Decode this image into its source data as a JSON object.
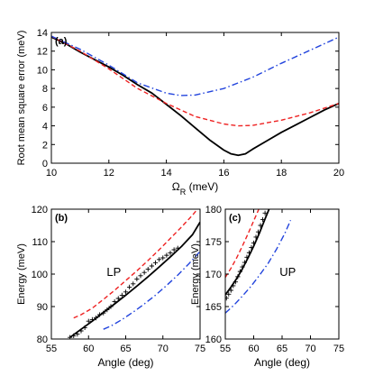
{
  "chart_data": [
    {
      "type": "line",
      "panel_label": "(a)",
      "title": "",
      "xlabel": "Ω",
      "xlabel_sub": "R",
      "xlabel_unit": " (meV)",
      "ylabel": "Root mean square error (meV)",
      "xlim": [
        10,
        20
      ],
      "ylim": [
        0,
        14
      ],
      "xticks": [
        10,
        12,
        14,
        16,
        18,
        20
      ],
      "yticks": [
        0,
        2,
        4,
        6,
        8,
        10,
        12,
        14
      ],
      "grid": false,
      "series": [
        {
          "style": "solid",
          "color": "#000000",
          "x": [
            10,
            10.5,
            11,
            11.5,
            12,
            12.5,
            13,
            13.5,
            14,
            14.5,
            15,
            15.5,
            16,
            16.25,
            16.5,
            16.75,
            17,
            17.5,
            18,
            18.5,
            19,
            19.5,
            20
          ],
          "y": [
            13.5,
            12.8,
            11.9,
            11.1,
            10.3,
            9.4,
            8.4,
            7.5,
            6.3,
            5.1,
            3.8,
            2.5,
            1.4,
            1.0,
            0.85,
            1.0,
            1.5,
            2.4,
            3.3,
            4.1,
            4.9,
            5.7,
            6.4
          ]
        },
        {
          "style": "dashed",
          "color": "#ee2222",
          "x": [
            10,
            11,
            12,
            13,
            14,
            15,
            16,
            16.5,
            17,
            18,
            19,
            20
          ],
          "y": [
            13.6,
            12.0,
            10.1,
            8.0,
            6.4,
            5.0,
            4.2,
            4.0,
            4.05,
            4.6,
            5.4,
            6.4
          ]
        },
        {
          "style": "dashdot",
          "color": "#2244dd",
          "x": [
            10,
            11,
            12,
            13,
            14,
            14.5,
            15,
            16,
            17,
            18,
            19,
            20
          ],
          "y": [
            13.6,
            12.2,
            10.5,
            8.6,
            7.5,
            7.25,
            7.3,
            8.0,
            9.2,
            10.7,
            12.1,
            13.5
          ]
        }
      ]
    },
    {
      "type": "line",
      "panel_label": "(b)",
      "annotation": "LP",
      "xlabel": "Angle (deg)",
      "ylabel": "Energy (meV)",
      "xlim": [
        55,
        75
      ],
      "ylim": [
        80,
        120
      ],
      "xticks": [
        55,
        60,
        65,
        70,
        75
      ],
      "yticks": [
        80,
        90,
        100,
        110,
        120
      ],
      "grid": false,
      "series": [
        {
          "style": "solid",
          "color": "#000000",
          "x": [
            57.5,
            59,
            60.5,
            62,
            63.5,
            65,
            66.5,
            68,
            69.5,
            71,
            72.5,
            74,
            75
          ],
          "y": [
            80.5,
            83,
            85.5,
            88.2,
            90.8,
            93.5,
            96.3,
            99.2,
            102.2,
            105.3,
            108.5,
            112.2,
            116
          ]
        },
        {
          "style": "dashed",
          "color": "#ee2222",
          "x": [
            58,
            59,
            60.5,
            62,
            63.5,
            65,
            66.5,
            68,
            69.5,
            71,
            72.5,
            74,
            75
          ],
          "y": [
            86.5,
            87.5,
            89.5,
            92.2,
            95,
            98,
            101,
            104.2,
            107.5,
            111,
            114.5,
            118.2,
            121
          ]
        },
        {
          "style": "dashdot",
          "color": "#2244dd",
          "x": [
            62,
            63,
            64.5,
            66,
            67.5,
            69,
            70.5,
            72,
            73.5,
            75
          ],
          "y": [
            83,
            84,
            86,
            88.3,
            90.8,
            93.5,
            96.5,
            99.7,
            103.2,
            107
          ]
        },
        {
          "style": "markers",
          "color": "#000000",
          "marker": "+",
          "x": [
            57.5,
            58,
            58.5,
            59,
            59.5,
            60,
            60.5,
            61,
            61.5,
            62,
            62.5,
            63,
            63.5,
            64,
            64.5,
            65,
            65.5,
            66,
            66.5,
            67,
            67.5,
            68,
            68.5,
            69,
            69.5,
            70,
            70.5,
            71,
            71.5,
            72
          ],
          "y": [
            80.5,
            81,
            81.5,
            82.5,
            83.5,
            85.5,
            86,
            86.5,
            87.5,
            88,
            89,
            90,
            91.5,
            92.5,
            93.5,
            94.5,
            96,
            97,
            98.5,
            99.5,
            100.5,
            101.5,
            102.5,
            103.5,
            104.5,
            105,
            105.8,
            106.5,
            107.5,
            108
          ]
        }
      ]
    },
    {
      "type": "line",
      "panel_label": "(c)",
      "annotation": "UP",
      "xlabel": "Angle (deg)",
      "ylabel": "Energy (meV)",
      "xlim": [
        55,
        75
      ],
      "ylim": [
        160,
        180
      ],
      "xticks": [
        55,
        60,
        65,
        70,
        75
      ],
      "yticks": [
        160,
        165,
        170,
        175,
        180
      ],
      "grid": false,
      "series": [
        {
          "style": "solid",
          "color": "#000000",
          "x": [
            55,
            56,
            57,
            58,
            59,
            60,
            61,
            62,
            62.8
          ],
          "y": [
            166.8,
            168,
            169.3,
            170.8,
            172.5,
            174.3,
            176.3,
            178.5,
            180.2
          ]
        },
        {
          "style": "dashed",
          "color": "#ee2222",
          "x": [
            55,
            56,
            57,
            58,
            59,
            60,
            61,
            61.5
          ],
          "y": [
            169.5,
            170.9,
            172.5,
            174.3,
            176.2,
            178.2,
            180.2,
            181
          ]
        },
        {
          "style": "dashdot",
          "color": "#2244dd",
          "x": [
            55,
            56.5,
            58,
            59.5,
            61,
            62.5,
            64,
            65.5,
            66.5
          ],
          "y": [
            164,
            165.2,
            166.6,
            168.1,
            169.8,
            171.6,
            173.8,
            176.3,
            178.3
          ]
        },
        {
          "style": "markers",
          "color": "#000000",
          "marker": "+",
          "x": [
            55.2,
            55.6,
            56,
            56.4,
            56.8,
            57.2,
            57.6,
            58,
            58.4,
            58.8,
            59.2,
            59.6,
            60,
            60.4,
            60.8,
            61.2,
            61.6,
            62
          ],
          "y": [
            166.3,
            166.9,
            167.5,
            168.2,
            168.8,
            169.6,
            170.4,
            171.1,
            171.8,
            172.6,
            173.3,
            174.1,
            174.8,
            175.7,
            176.5,
            177.5,
            178.4,
            179.4
          ]
        }
      ]
    }
  ]
}
